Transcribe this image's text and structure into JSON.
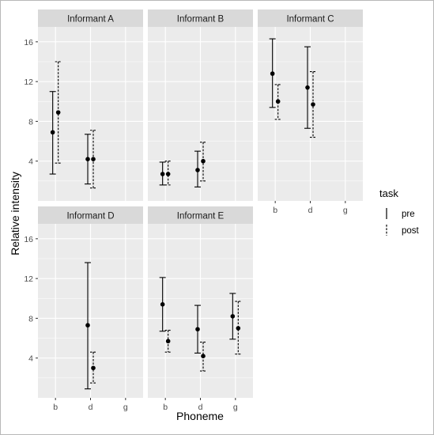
{
  "chart_data": {
    "type": "scatter",
    "subtype": "faceted point-range (mean with error bars)",
    "xlabel": "Phoneme",
    "ylabel": "Relative intensity",
    "categories": [
      "b",
      "d",
      "g"
    ],
    "ylim": [
      0,
      17.5
    ],
    "yticks": [
      4,
      8,
      12,
      16
    ],
    "grid": true,
    "legend": {
      "title": "task",
      "placement": "right",
      "entries": [
        {
          "name": "pre",
          "linestyle": "solid"
        },
        {
          "name": "post",
          "linestyle": "dashed"
        }
      ]
    },
    "colors": {
      "panel": "#ebebeb",
      "strip": "#d9d9d9",
      "grid": "#ffffff",
      "mark": "#000000"
    },
    "facets": [
      {
        "title": "Informant A",
        "series": [
          {
            "name": "pre",
            "points": [
              {
                "x": "b",
                "y": 6.9,
                "low": 2.7,
                "high": 11.0
              },
              {
                "x": "d",
                "y": 4.2,
                "low": 1.7,
                "high": 6.7
              }
            ]
          },
          {
            "name": "post",
            "points": [
              {
                "x": "b",
                "y": 8.9,
                "low": 3.8,
                "high": 14.0
              },
              {
                "x": "d",
                "y": 4.2,
                "low": 1.3,
                "high": 7.1
              }
            ]
          }
        ]
      },
      {
        "title": "Informant B",
        "series": [
          {
            "name": "pre",
            "points": [
              {
                "x": "b",
                "y": 2.7,
                "low": 1.6,
                "high": 3.9
              },
              {
                "x": "d",
                "y": 3.1,
                "low": 1.4,
                "high": 5.0
              }
            ]
          },
          {
            "name": "post",
            "points": [
              {
                "x": "b",
                "y": 2.7,
                "low": 1.6,
                "high": 4.0
              },
              {
                "x": "d",
                "y": 4.0,
                "low": 2.0,
                "high": 5.9
              }
            ]
          }
        ]
      },
      {
        "title": "Informant C",
        "series": [
          {
            "name": "pre",
            "points": [
              {
                "x": "b",
                "y": 12.8,
                "low": 9.4,
                "high": 16.3
              },
              {
                "x": "d",
                "y": 11.4,
                "low": 7.3,
                "high": 15.5
              }
            ]
          },
          {
            "name": "post",
            "points": [
              {
                "x": "b",
                "y": 10.0,
                "low": 8.2,
                "high": 11.7
              },
              {
                "x": "d",
                "y": 9.7,
                "low": 6.4,
                "high": 13.0
              }
            ]
          }
        ]
      },
      {
        "title": "Informant D",
        "series": [
          {
            "name": "pre",
            "points": [
              {
                "x": "d",
                "y": 7.3,
                "low": 0.9,
                "high": 13.6
              }
            ]
          },
          {
            "name": "post",
            "points": [
              {
                "x": "d",
                "y": 3.0,
                "low": 1.5,
                "high": 4.6
              }
            ]
          }
        ]
      },
      {
        "title": "Informant E",
        "series": [
          {
            "name": "pre",
            "points": [
              {
                "x": "b",
                "y": 9.4,
                "low": 6.7,
                "high": 12.1
              },
              {
                "x": "d",
                "y": 6.9,
                "low": 4.5,
                "high": 9.3
              },
              {
                "x": "g",
                "y": 8.2,
                "low": 5.9,
                "high": 10.5
              }
            ]
          },
          {
            "name": "post",
            "points": [
              {
                "x": "b",
                "y": 5.7,
                "low": 4.6,
                "high": 6.8
              },
              {
                "x": "d",
                "y": 4.2,
                "low": 2.7,
                "high": 5.6
              },
              {
                "x": "g",
                "y": 7.0,
                "low": 4.4,
                "high": 9.7
              }
            ]
          }
        ]
      }
    ]
  }
}
